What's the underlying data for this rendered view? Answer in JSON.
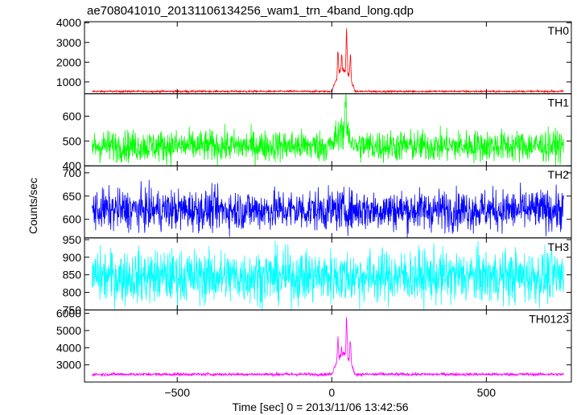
{
  "chart_data": {
    "type": "line",
    "title": "ae708041010_20131106134256_wam1_trn_4band_long.qdp",
    "xlabel": "Time [sec] 0 = 2013/11/06 13:42:56",
    "ylabel": "Counts/sec",
    "xlim": [
      -800,
      775
    ],
    "x_ticks": [
      -500,
      0,
      500
    ],
    "x_tick_labels": [
      "−500",
      "0",
      "500"
    ],
    "grid": false,
    "panels": [
      {
        "name": "TH0",
        "color": "#ff0000",
        "ylim": [
          400,
          4050
        ],
        "y_ticks": [
          1000,
          2000,
          3000,
          4000
        ],
        "y_tick_labels": [
          "1000",
          "2000",
          "3000",
          "4000"
        ],
        "baseline": 520,
        "noise": 25,
        "peaks": [
          {
            "x": 20,
            "y": 2800
          },
          {
            "x": 32,
            "y": 2500
          },
          {
            "x": 48,
            "y": 3950
          },
          {
            "x": 60,
            "y": 2600
          }
        ],
        "burst_start": 0,
        "burst_end": 75
      },
      {
        "name": "TH1",
        "color": "#00ff00",
        "ylim": [
          400,
          690
        ],
        "y_ticks": [
          400,
          500,
          600
        ],
        "y_tick_labels": [
          "400",
          "500",
          "600"
        ],
        "baseline": 480,
        "noise": 32,
        "peaks": [
          {
            "x": 30,
            "y": 600
          },
          {
            "x": 45,
            "y": 680
          }
        ],
        "burst_start": 0,
        "burst_end": 75
      },
      {
        "name": "TH2",
        "color": "#0000ff",
        "ylim": [
          560,
          715
        ],
        "y_ticks": [
          600,
          650,
          700
        ],
        "y_tick_labels": [
          "600",
          "650",
          "700"
        ],
        "baseline": 620,
        "noise": 22,
        "peaks": [],
        "burst_start": 0,
        "burst_end": 0
      },
      {
        "name": "TH3",
        "color": "#00ffff",
        "ylim": [
          750,
          955
        ],
        "y_ticks": [
          750,
          800,
          850,
          900,
          950
        ],
        "y_tick_labels": [
          "750",
          "800",
          "850",
          "900",
          "950"
        ],
        "baseline": 845,
        "noise": 38,
        "peaks": [],
        "burst_start": 0,
        "burst_end": 0
      },
      {
        "name": "TH0123",
        "color": "#ff00ff",
        "ylim": [
          2000,
          6200
        ],
        "y_ticks": [
          3000,
          4000,
          5000,
          6000
        ],
        "y_tick_labels": [
          "3000",
          "4000",
          "5000",
          "6000"
        ],
        "baseline": 2450,
        "noise": 45,
        "peaks": [
          {
            "x": 20,
            "y": 4900
          },
          {
            "x": 32,
            "y": 4300
          },
          {
            "x": 48,
            "y": 6100
          },
          {
            "x": 60,
            "y": 4600
          }
        ],
        "burst_start": 0,
        "burst_end": 75
      }
    ]
  }
}
